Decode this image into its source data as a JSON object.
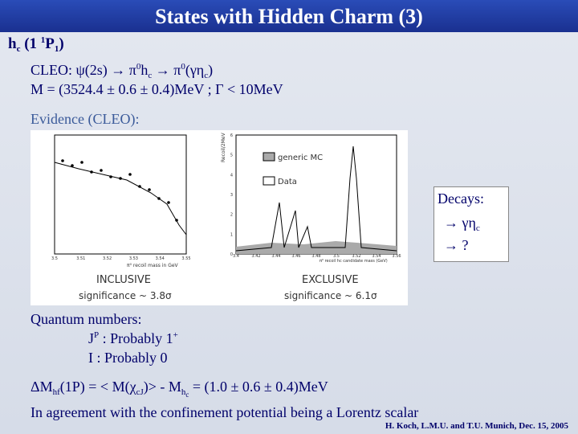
{
  "header": {
    "title": "States with Hidden Charm (3)"
  },
  "heading": [
    "h",
    "c",
    " (1 ",
    "1",
    "P",
    "1",
    ")"
  ],
  "cleo_line": [
    "CLEO: ψ(2s) → π",
    "0",
    "h",
    "c",
    " → π",
    "0",
    "(γη",
    "c",
    ")"
  ],
  "mass_line": "M = (3524.4 ± 0.6 ± 0.4)MeV ; Γ < 10MeV",
  "evidence": "Evidence (CLEO):",
  "figure": {
    "inclusive": {
      "label": "INCLUSIVE",
      "significance": "significance ~ 3.8σ",
      "x_label": "π⁰ recoil mass in GeV",
      "xticks": [
        "3.5",
        "3.51",
        "3.52",
        "3.53",
        "3.54",
        "3.55"
      ]
    },
    "exclusive": {
      "label": "EXCLUSIVE",
      "significance": "significance ~ 6.1σ",
      "x_label": "π⁰ recoil hc candidate mass (GeV)",
      "y_label": "Recoil/2MeV",
      "legend": [
        "generic MC",
        "Data"
      ],
      "yticks": [
        "0",
        "1",
        "2",
        "3",
        "4",
        "5",
        "6"
      ],
      "xticks": [
        "3.4",
        "3.42",
        "3.44",
        "3.46",
        "3.48",
        "3.5",
        "3.52",
        "3.54",
        "3.56"
      ]
    }
  },
  "decays": {
    "title": "Decays:",
    "items": [
      [
        "→ γη",
        "c"
      ],
      [
        "→ ?"
      ]
    ]
  },
  "quantum": {
    "title": "Quantum numbers:",
    "jp": [
      "J",
      "P",
      " : Probably 1",
      "+"
    ],
    "isospin": "I  : Probably 0"
  },
  "delta_line": [
    "ΔM",
    "hf",
    "(1P) = < M(χ",
    "cJ",
    ")> - M",
    "h",
    "c",
    " = (1.0 ± 0.6 ± 0.4)MeV"
  ],
  "agreement": "In agreement with the confinement potential being a Lorentz scalar",
  "footer": "H. Koch, L.M.U. and T.U. Munich, Dec. 15, 2005"
}
